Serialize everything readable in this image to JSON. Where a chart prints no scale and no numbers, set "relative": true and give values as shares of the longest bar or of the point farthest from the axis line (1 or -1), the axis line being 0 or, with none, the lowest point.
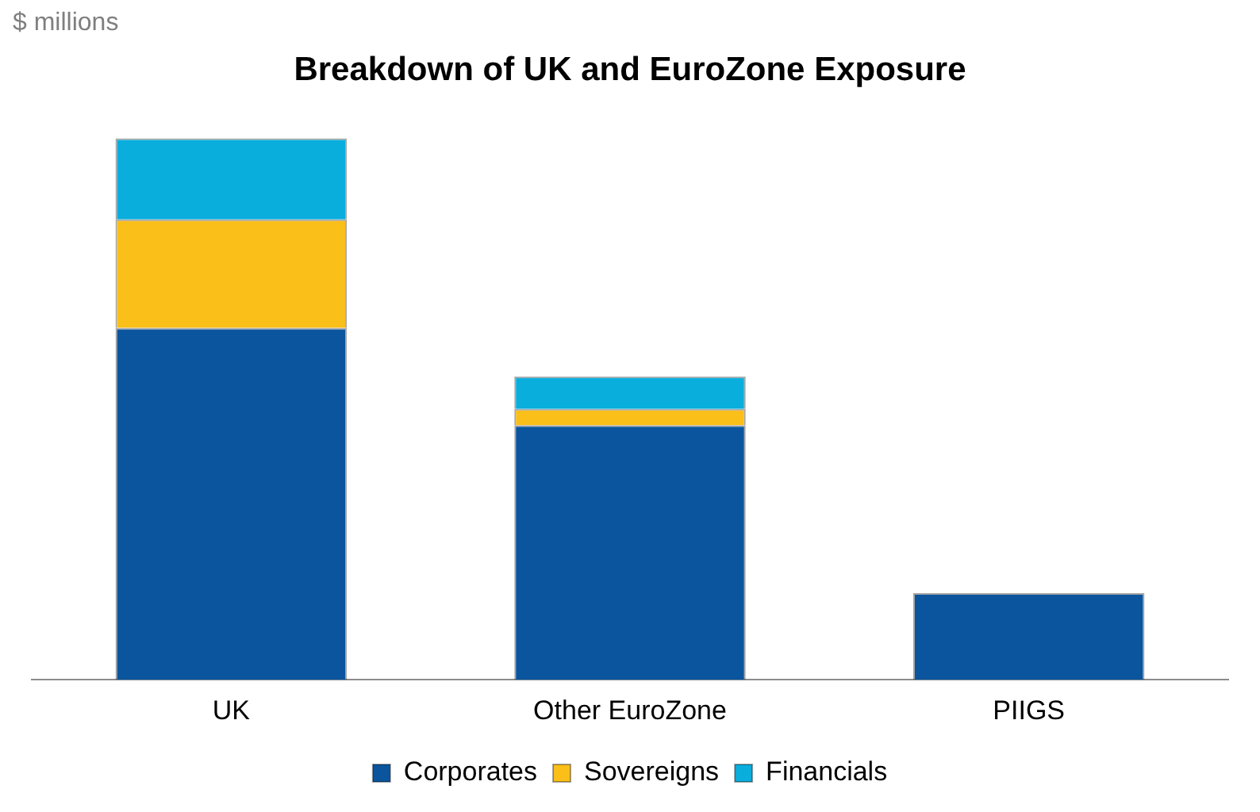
{
  "chart_data": {
    "type": "bar",
    "title": "Breakdown of UK and EuroZone Exposure",
    "ylabel": "$ millions",
    "categories": [
      "UK",
      "Other EuroZone",
      "PIIGS"
    ],
    "stacked": true,
    "relative": true,
    "grid": false,
    "legend": "bottom",
    "series": [
      {
        "name": "Corporates",
        "color": "#0a559d",
        "values": [
          0.65,
          0.47,
          0.16
        ]
      },
      {
        "name": "Sovereigns",
        "color": "#fbbf1a",
        "values": [
          0.2,
          0.03,
          0
        ]
      },
      {
        "name": "Financials",
        "color": "#0aaedd",
        "values": [
          0.15,
          0.06,
          0
        ]
      }
    ]
  }
}
